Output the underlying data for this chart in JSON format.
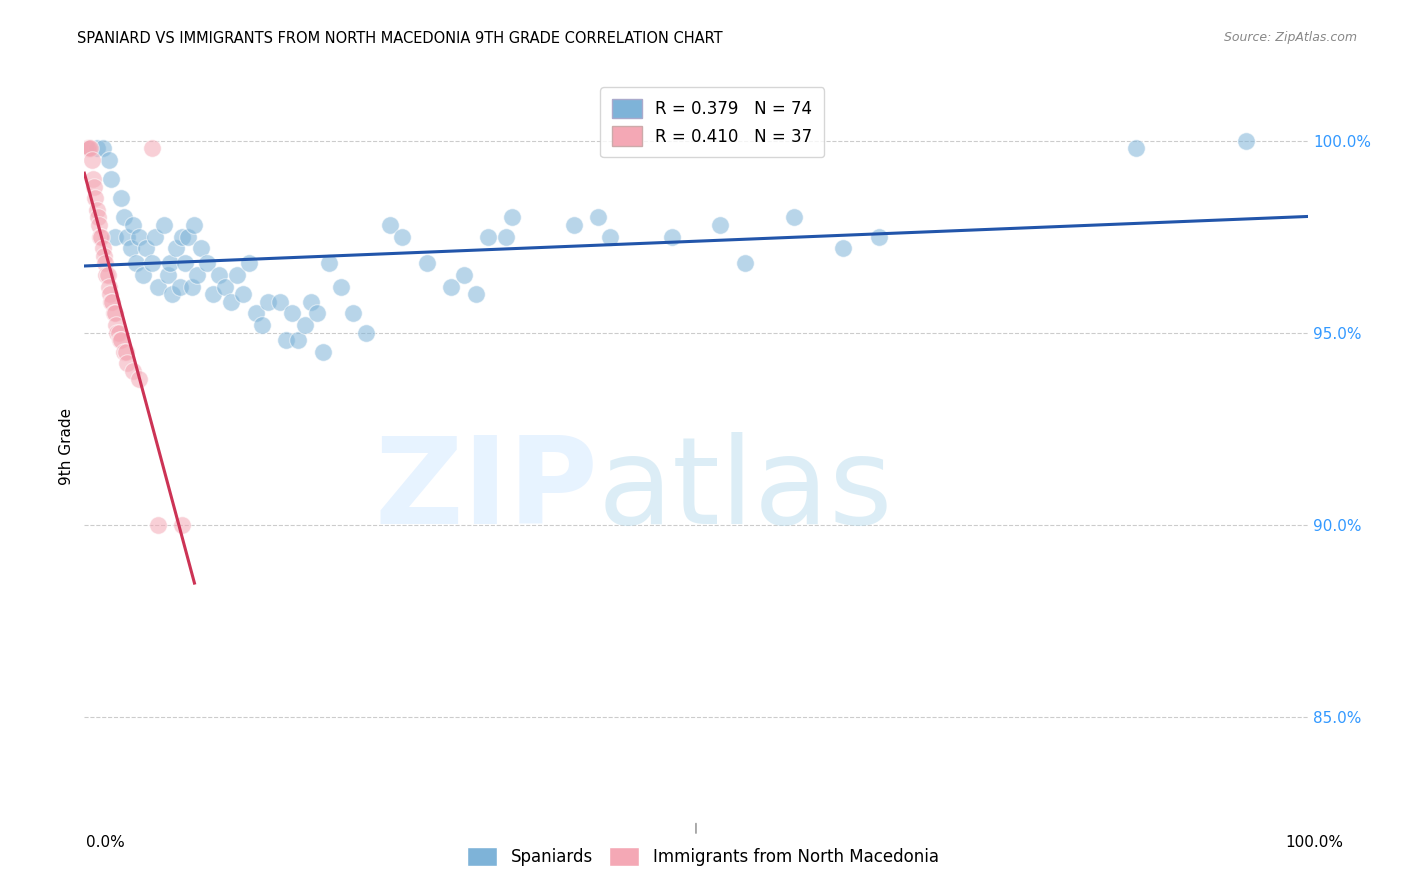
{
  "title": "SPANIARD VS IMMIGRANTS FROM NORTH MACEDONIA 9TH GRADE CORRELATION CHART",
  "source": "Source: ZipAtlas.com",
  "ylabel": "9th Grade",
  "blue_R": 0.379,
  "blue_N": 74,
  "pink_R": 0.41,
  "pink_N": 37,
  "ytick_labels": [
    "85.0%",
    "90.0%",
    "95.0%",
    "100.0%"
  ],
  "ytick_values": [
    0.85,
    0.9,
    0.95,
    1.0
  ],
  "xmin": 0.0,
  "xmax": 1.0,
  "ymin": 0.823,
  "ymax": 1.018,
  "blue_color": "#7EB3D8",
  "pink_color": "#F4A8B5",
  "trendline_blue": "#2255AA",
  "trendline_pink": "#CC3355",
  "blue_scatter": [
    [
      0.005,
      0.998
    ],
    [
      0.01,
      0.998
    ],
    [
      0.015,
      0.998
    ],
    [
      0.02,
      0.995
    ],
    [
      0.022,
      0.99
    ],
    [
      0.025,
      0.975
    ],
    [
      0.03,
      0.985
    ],
    [
      0.032,
      0.98
    ],
    [
      0.035,
      0.975
    ],
    [
      0.038,
      0.972
    ],
    [
      0.04,
      0.978
    ],
    [
      0.042,
      0.968
    ],
    [
      0.045,
      0.975
    ],
    [
      0.048,
      0.965
    ],
    [
      0.05,
      0.972
    ],
    [
      0.055,
      0.968
    ],
    [
      0.058,
      0.975
    ],
    [
      0.06,
      0.962
    ],
    [
      0.065,
      0.978
    ],
    [
      0.068,
      0.965
    ],
    [
      0.07,
      0.968
    ],
    [
      0.072,
      0.96
    ],
    [
      0.075,
      0.972
    ],
    [
      0.078,
      0.962
    ],
    [
      0.08,
      0.975
    ],
    [
      0.082,
      0.968
    ],
    [
      0.085,
      0.975
    ],
    [
      0.088,
      0.962
    ],
    [
      0.09,
      0.978
    ],
    [
      0.092,
      0.965
    ],
    [
      0.095,
      0.972
    ],
    [
      0.1,
      0.968
    ],
    [
      0.105,
      0.96
    ],
    [
      0.11,
      0.965
    ],
    [
      0.115,
      0.962
    ],
    [
      0.12,
      0.958
    ],
    [
      0.125,
      0.965
    ],
    [
      0.13,
      0.96
    ],
    [
      0.135,
      0.968
    ],
    [
      0.14,
      0.955
    ],
    [
      0.145,
      0.952
    ],
    [
      0.15,
      0.958
    ],
    [
      0.16,
      0.958
    ],
    [
      0.165,
      0.948
    ],
    [
      0.17,
      0.955
    ],
    [
      0.175,
      0.948
    ],
    [
      0.18,
      0.952
    ],
    [
      0.185,
      0.958
    ],
    [
      0.19,
      0.955
    ],
    [
      0.195,
      0.945
    ],
    [
      0.2,
      0.968
    ],
    [
      0.21,
      0.962
    ],
    [
      0.22,
      0.955
    ],
    [
      0.23,
      0.95
    ],
    [
      0.25,
      0.978
    ],
    [
      0.26,
      0.975
    ],
    [
      0.28,
      0.968
    ],
    [
      0.3,
      0.962
    ],
    [
      0.31,
      0.965
    ],
    [
      0.32,
      0.96
    ],
    [
      0.33,
      0.975
    ],
    [
      0.345,
      0.975
    ],
    [
      0.35,
      0.98
    ],
    [
      0.4,
      0.978
    ],
    [
      0.42,
      0.98
    ],
    [
      0.43,
      0.975
    ],
    [
      0.48,
      0.975
    ],
    [
      0.52,
      0.978
    ],
    [
      0.54,
      0.968
    ],
    [
      0.58,
      0.98
    ],
    [
      0.62,
      0.972
    ],
    [
      0.65,
      0.975
    ],
    [
      0.86,
      0.998
    ],
    [
      0.95,
      1.0
    ]
  ],
  "pink_scatter": [
    [
      0.002,
      0.998
    ],
    [
      0.003,
      0.998
    ],
    [
      0.004,
      0.998
    ],
    [
      0.005,
      0.998
    ],
    [
      0.006,
      0.995
    ],
    [
      0.007,
      0.99
    ],
    [
      0.008,
      0.988
    ],
    [
      0.009,
      0.985
    ],
    [
      0.01,
      0.982
    ],
    [
      0.011,
      0.98
    ],
    [
      0.012,
      0.978
    ],
    [
      0.013,
      0.975
    ],
    [
      0.014,
      0.975
    ],
    [
      0.015,
      0.972
    ],
    [
      0.016,
      0.97
    ],
    [
      0.017,
      0.968
    ],
    [
      0.018,
      0.965
    ],
    [
      0.019,
      0.965
    ],
    [
      0.02,
      0.962
    ],
    [
      0.021,
      0.96
    ],
    [
      0.022,
      0.958
    ],
    [
      0.023,
      0.958
    ],
    [
      0.024,
      0.955
    ],
    [
      0.025,
      0.955
    ],
    [
      0.026,
      0.952
    ],
    [
      0.027,
      0.95
    ],
    [
      0.028,
      0.95
    ],
    [
      0.029,
      0.948
    ],
    [
      0.03,
      0.948
    ],
    [
      0.032,
      0.945
    ],
    [
      0.034,
      0.945
    ],
    [
      0.035,
      0.942
    ],
    [
      0.04,
      0.94
    ],
    [
      0.045,
      0.938
    ],
    [
      0.055,
      0.998
    ],
    [
      0.06,
      0.9
    ],
    [
      0.08,
      0.9
    ]
  ],
  "title_fontsize": 10.5,
  "axis_label_fontsize": 10,
  "tick_fontsize": 10,
  "legend_fontsize": 12,
  "source_fontsize": 9
}
